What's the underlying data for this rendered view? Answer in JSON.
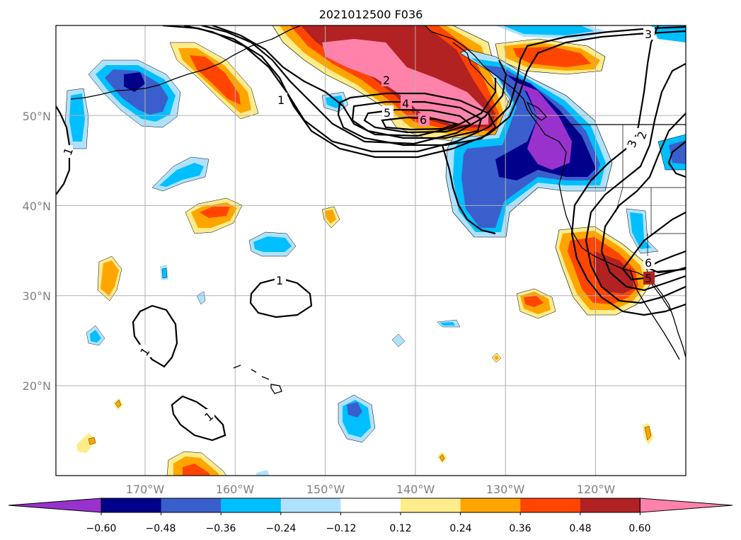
{
  "title": "2021012500 F036",
  "map": {
    "lat_gridlines": [
      20,
      30,
      40,
      50
    ],
    "lon_gridlines": [
      -170,
      -160,
      -150,
      -140,
      -130,
      -120
    ],
    "lat_labels": [
      "20°N",
      "30°N",
      "40°N",
      "50°N"
    ],
    "lon_labels": [
      "170°W",
      "160°W",
      "150°W",
      "140°W",
      "130°W",
      "120°W"
    ],
    "grid": true
  },
  "contour_labels": [
    "3",
    "1",
    "2",
    "5",
    "4",
    "6",
    "1",
    "1",
    "1",
    "1",
    "2",
    "3",
    "6",
    "5"
  ],
  "colorbar": {
    "extend": "both",
    "tick_labels": [
      "−0.60",
      "−0.48",
      "−0.36",
      "−0.24",
      "−0.12",
      "0.12",
      "0.24",
      "0.36",
      "0.48",
      "0.60"
    ],
    "colors": [
      "#9932CC",
      "#00008B",
      "#3A5FCD",
      "#00BFFF",
      "#B0E2FF",
      "#FFFFFF",
      "#FFEC8B",
      "#FFA500",
      "#FF4500",
      "#B22222",
      "#FF82AB"
    ]
  }
}
